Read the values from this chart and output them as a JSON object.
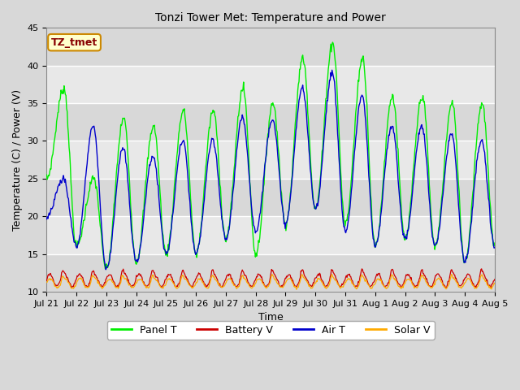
{
  "title": "Tonzi Tower Met: Temperature and Power",
  "xlabel": "Time",
  "ylabel": "Temperature (C) / Power (V)",
  "ylim": [
    10,
    45
  ],
  "annotation_text": "TZ_tmet",
  "annotation_color": "#880000",
  "annotation_bg": "#ffffcc",
  "annotation_border": "#cc8800",
  "colors": {
    "panel_t": "#00ee00",
    "battery_v": "#cc0000",
    "air_t": "#0000cc",
    "solar_v": "#ffaa00"
  },
  "legend_labels": [
    "Panel T",
    "Battery V",
    "Air T",
    "Solar V"
  ],
  "tick_labels": [
    "Jul 21",
    "Jul 22",
    "Jul 23",
    "Jul 24",
    "Jul 25",
    "Jul 26",
    "Jul 27",
    "Jul 28",
    "Jul 29",
    "Jul 30",
    "Jul 31",
    "Aug 1",
    "Aug 2",
    "Aug 3",
    "Aug 4",
    "Aug 5"
  ],
  "panel_peaks": [
    37,
    25,
    33,
    32,
    34,
    34,
    37,
    35,
    41,
    43,
    41,
    36,
    36,
    35,
    35,
    33
  ],
  "panel_mins": [
    25,
    16,
    13,
    14,
    15,
    15,
    17,
    15,
    19,
    21,
    19,
    16,
    17,
    16,
    14,
    16
  ],
  "air_peaks": [
    25,
    32,
    29,
    28,
    30,
    30,
    33,
    33,
    37,
    39,
    36,
    32,
    32,
    31,
    30,
    29
  ],
  "air_mins": [
    20,
    16,
    13,
    14,
    15,
    15,
    17,
    18,
    19,
    21,
    18,
    16,
    17,
    16,
    14,
    16
  ],
  "batt_base": 11.5,
  "batt_amp": 0.8,
  "solar_base": 11.1,
  "solar_amp": 0.6,
  "figsize": [
    6.4,
    4.8
  ],
  "dpi": 100
}
